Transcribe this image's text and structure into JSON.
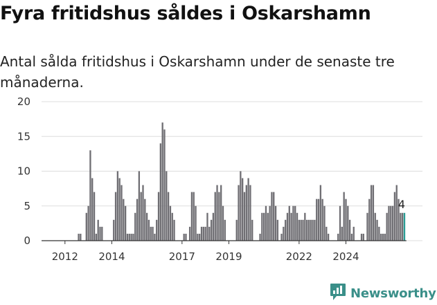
{
  "title": "Fyra fritidshus såldes i Oskarshamn",
  "subtitle": "Antal sålda fritidshus i Oskarshamn under de senaste tre månaderna.",
  "brand": {
    "name": "Newsworthy",
    "icon": "newsworthy-chart-logo-icon"
  },
  "colors": {
    "bar": "#6f6e73",
    "highlight": "#2a9d95",
    "grid": "#dddddd",
    "brand": "#3a8f89"
  },
  "chart_data": {
    "type": "bar",
    "title": "Fyra fritidshus såldes i Oskarshamn",
    "xlabel": "",
    "ylabel": "",
    "ylim": [
      0,
      20
    ],
    "yticks": [
      0,
      5,
      10,
      15,
      20
    ],
    "xticks": [
      "2012",
      "2014",
      "2017",
      "2019",
      "2022",
      "2024"
    ],
    "grid": true,
    "x_start": "2011-01",
    "x_unit": "month",
    "values": [
      null,
      null,
      null,
      null,
      null,
      null,
      null,
      null,
      null,
      null,
      null,
      null,
      null,
      null,
      null,
      null,
      null,
      null,
      null,
      1,
      1,
      0,
      0,
      4,
      5,
      13,
      9,
      7,
      1,
      3,
      2,
      2,
      0,
      0,
      0,
      0,
      0,
      3,
      7,
      10,
      9,
      8,
      6,
      5,
      1,
      1,
      1,
      1,
      4,
      6,
      10,
      7,
      8,
      6,
      4,
      3,
      2,
      2,
      1,
      3,
      7,
      14,
      17,
      16,
      10,
      7,
      5,
      4,
      3,
      0,
      0,
      0,
      0,
      1,
      1,
      0,
      2,
      7,
      7,
      5,
      1,
      1,
      2,
      2,
      2,
      4,
      2,
      3,
      4,
      7,
      8,
      7,
      8,
      5,
      3,
      0,
      0,
      0,
      0,
      0,
      3,
      8,
      10,
      9,
      7,
      8,
      9,
      8,
      3,
      0,
      0,
      0,
      1,
      4,
      4,
      5,
      4,
      5,
      7,
      7,
      5,
      3,
      0,
      1,
      2,
      3,
      4,
      5,
      4,
      5,
      5,
      4,
      3,
      3,
      3,
      4,
      3,
      3,
      3,
      3,
      3,
      6,
      6,
      8,
      6,
      5,
      2,
      1,
      0,
      0,
      0,
      0,
      1,
      5,
      2,
      7,
      6,
      5,
      3,
      1,
      2,
      0,
      0,
      0,
      1,
      1,
      0,
      4,
      6,
      8,
      8,
      4,
      3,
      2,
      1,
      1,
      1,
      4,
      5,
      5,
      5,
      7,
      8,
      6,
      4,
      4,
      4
    ],
    "highlight_last": true,
    "data_labels": [
      {
        "index": "last",
        "text": "4"
      }
    ]
  }
}
